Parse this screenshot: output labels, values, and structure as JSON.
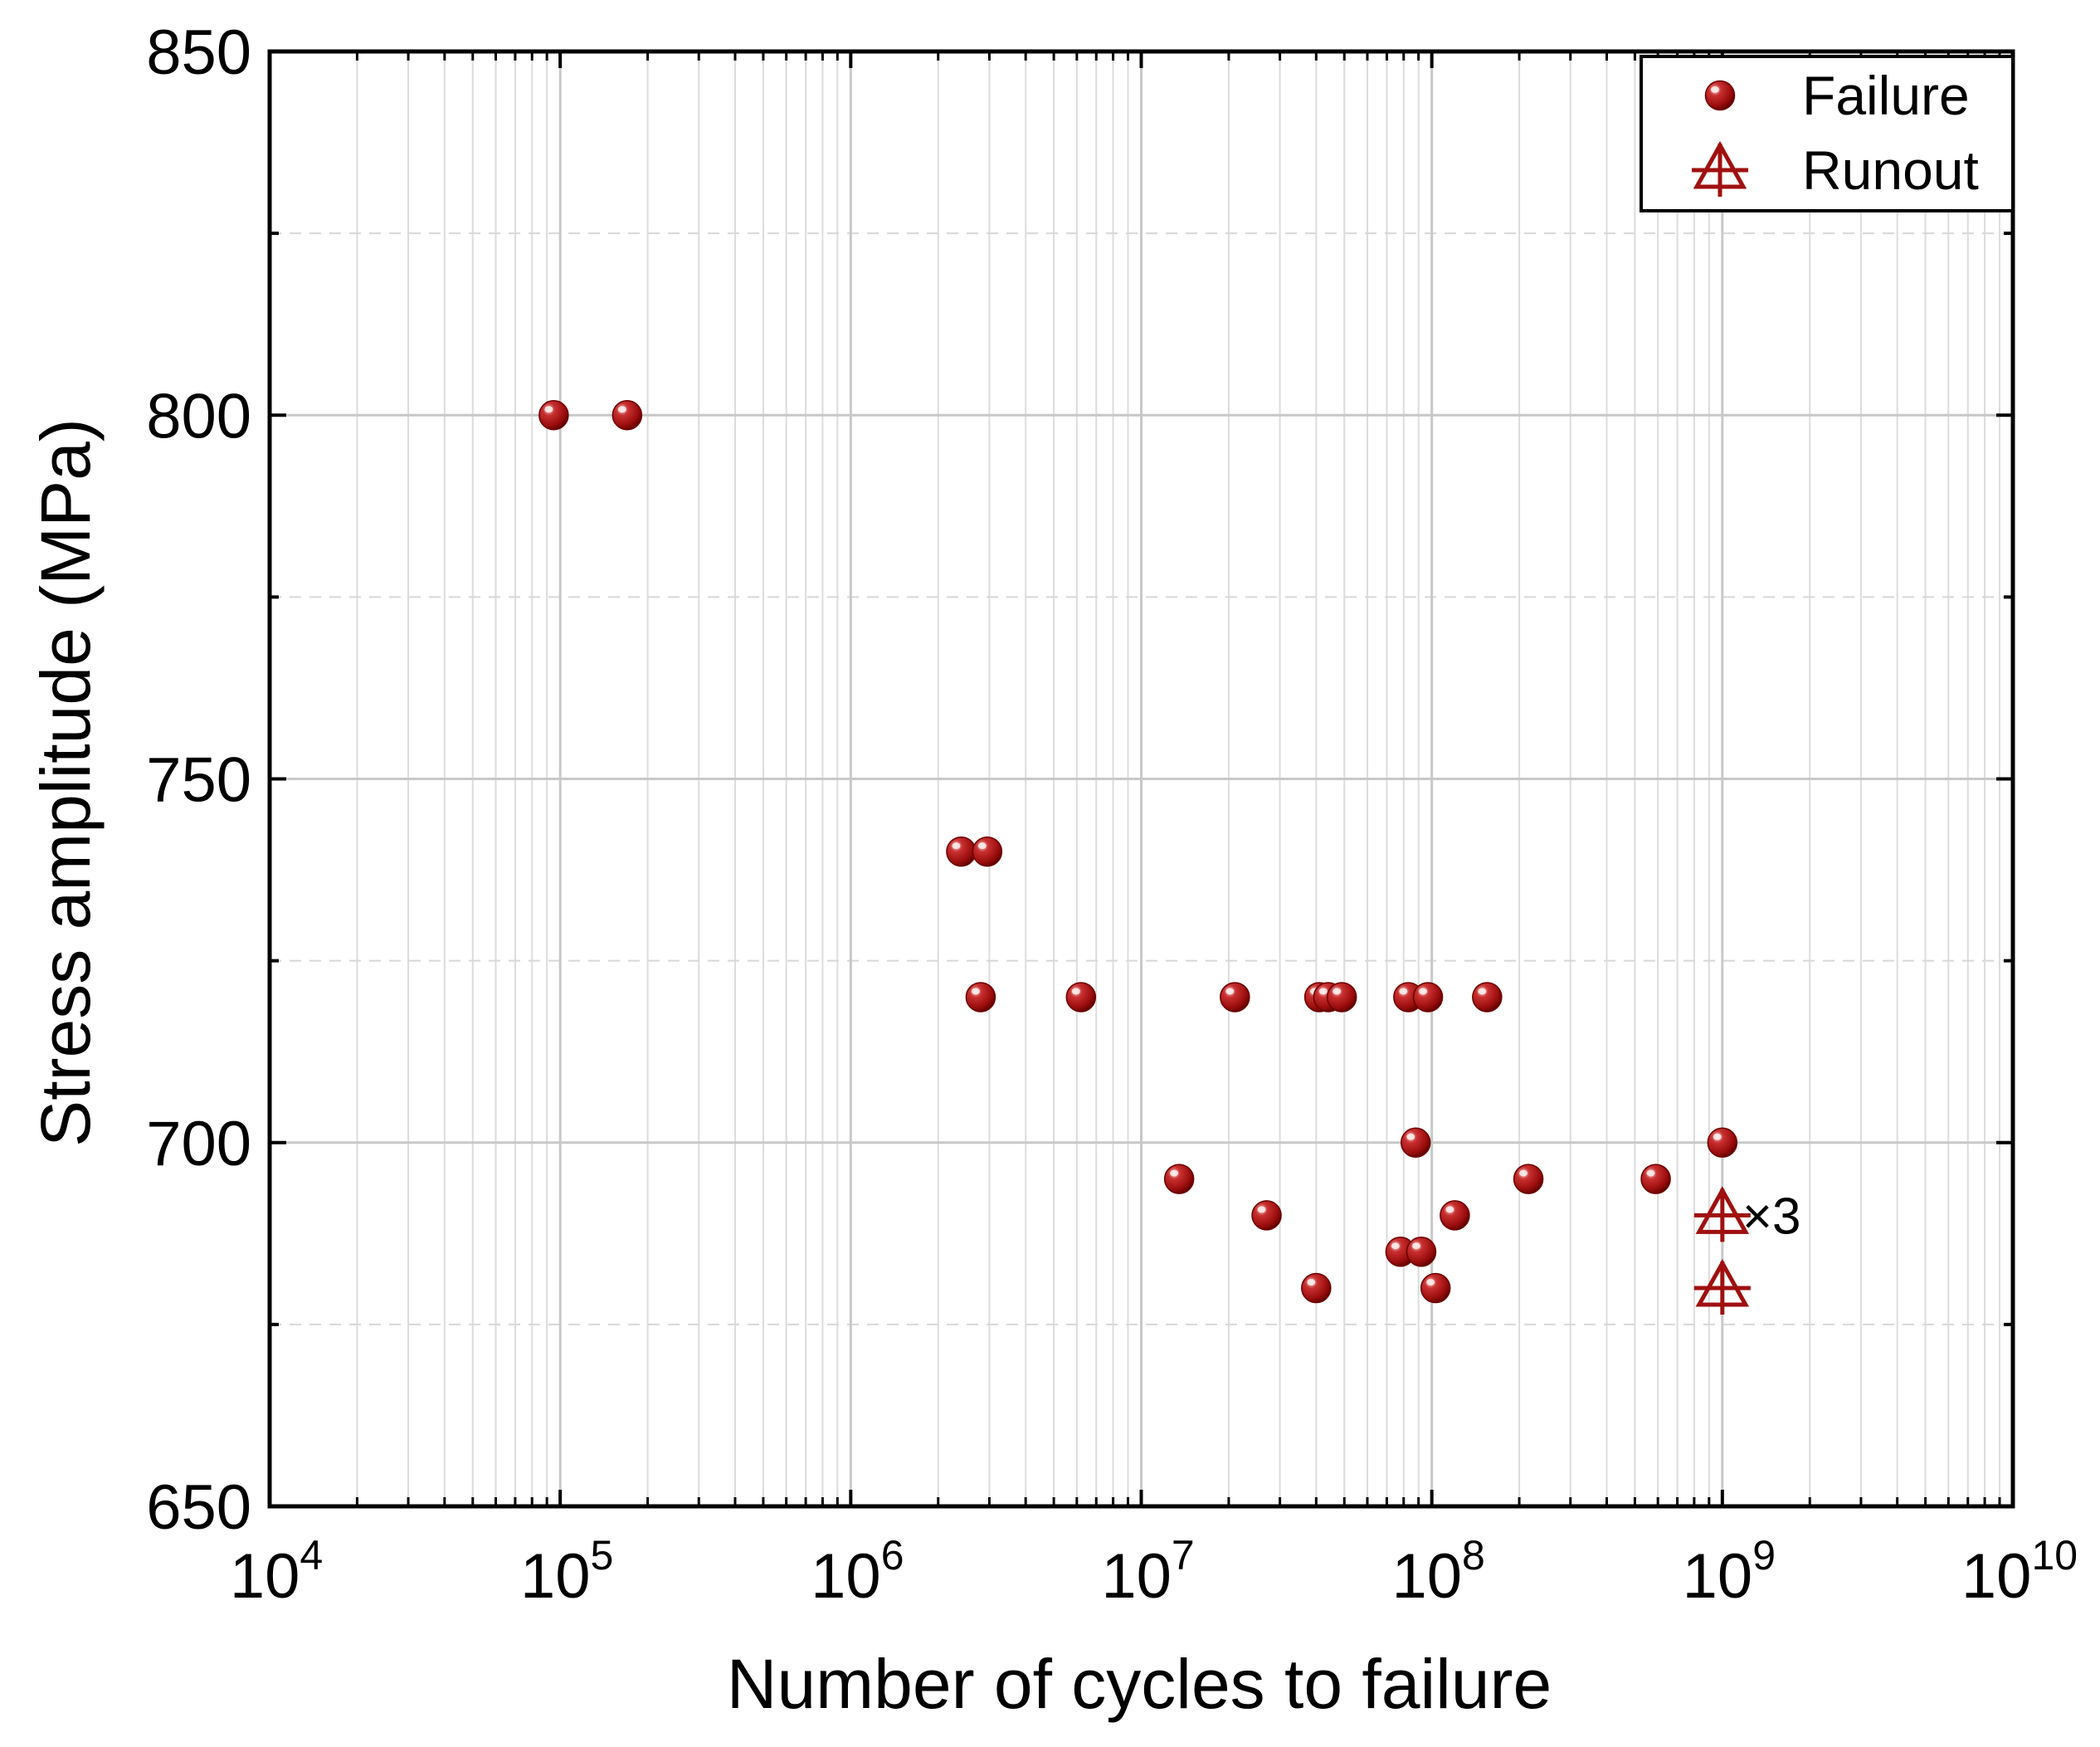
{
  "chart_data": {
    "type": "scatter",
    "xlabel": "Number of cycles to failure",
    "ylabel": "Stress amplitude (MPa)",
    "xscale": "log",
    "xlim": [
      10000,
      10000000000
    ],
    "ylim": [
      650,
      850
    ],
    "x_ticks": [
      {
        "base": "10",
        "exp": "4"
      },
      {
        "base": "10",
        "exp": "5"
      },
      {
        "base": "10",
        "exp": "6"
      },
      {
        "base": "10",
        "exp": "7"
      },
      {
        "base": "10",
        "exp": "8"
      },
      {
        "base": "10",
        "exp": "9"
      },
      {
        "base": "10",
        "exp": "10"
      }
    ],
    "y_ticks": [
      "650",
      "700",
      "750",
      "800",
      "850"
    ],
    "grid": true,
    "legend": {
      "position": "top-right"
    },
    "colors": {
      "marker": "#a01010",
      "marker_dark": "#6b0000",
      "marker_light": "#ffd6d6"
    },
    "series": [
      {
        "name": "Failure",
        "marker": "sphere",
        "points": [
          {
            "x": 95000,
            "y": 800
          },
          {
            "x": 170000,
            "y": 800
          },
          {
            "x": 2400000,
            "y": 740
          },
          {
            "x": 2950000,
            "y": 740
          },
          {
            "x": 2800000,
            "y": 720
          },
          {
            "x": 6200000,
            "y": 720
          },
          {
            "x": 21000000,
            "y": 720
          },
          {
            "x": 41000000,
            "y": 720
          },
          {
            "x": 44000000,
            "y": 720
          },
          {
            "x": 49000000,
            "y": 720
          },
          {
            "x": 83000000,
            "y": 720
          },
          {
            "x": 97000000,
            "y": 720
          },
          {
            "x": 155000000,
            "y": 720
          },
          {
            "x": 88000000,
            "y": 700
          },
          {
            "x": 1000000000,
            "y": 700
          },
          {
            "x": 13500000,
            "y": 695
          },
          {
            "x": 215000000,
            "y": 695
          },
          {
            "x": 590000000,
            "y": 695
          },
          {
            "x": 27000000,
            "y": 690
          },
          {
            "x": 120000000,
            "y": 690
          },
          {
            "x": 78000000,
            "y": 685
          },
          {
            "x": 92000000,
            "y": 685
          },
          {
            "x": 40000000,
            "y": 680
          },
          {
            "x": 103000000,
            "y": 680
          }
        ]
      },
      {
        "name": "Runout",
        "marker": "triangle-cross",
        "points": [
          {
            "x": 1000000000,
            "y": 690,
            "label": "×3"
          },
          {
            "x": 1000000000,
            "y": 680
          }
        ]
      }
    ]
  }
}
